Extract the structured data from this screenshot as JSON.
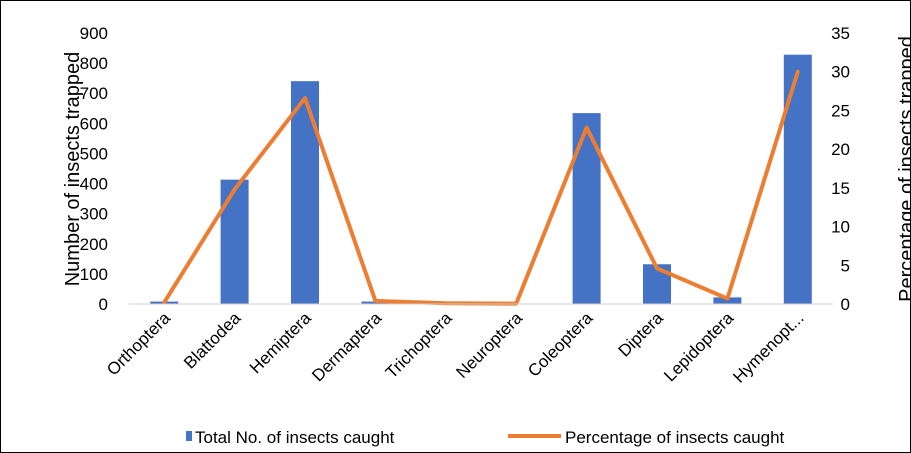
{
  "chart_data": {
    "type": "bar",
    "categories": [
      "Orthoptera",
      "Blattodea",
      "Hemiptera",
      "Dermaptera",
      "Trichoptera",
      "Neuroptera",
      "Coleoptera",
      "Diptera",
      "Lepidoptera",
      "Hymenopt..."
    ],
    "series": [
      {
        "name": "Total No. of insects caught",
        "type": "bar",
        "axis": "left",
        "color": "#4472C4",
        "values": [
          8,
          413,
          740,
          8,
          1,
          1,
          634,
          132,
          22,
          828
        ]
      },
      {
        "name": "Percentage of insects caught",
        "type": "line",
        "axis": "right",
        "color": "#ED7D31",
        "values": [
          0.2,
          14.8,
          26.6,
          0.4,
          0.1,
          0.05,
          22.8,
          4.6,
          0.7,
          30.0
        ]
      }
    ],
    "ylabel": "Number of insects trapped",
    "y2label": "Percentage of insects trapped",
    "ylim": [
      0,
      900
    ],
    "y2lim": [
      0,
      35
    ],
    "yticks": [
      "0",
      "100",
      "200",
      "300",
      "400",
      "500",
      "600",
      "700",
      "800",
      "900"
    ],
    "y2ticks": [
      "0",
      "5",
      "10",
      "15",
      "20",
      "25",
      "30",
      "35"
    ],
    "grid": false,
    "legend_position": "bottom"
  }
}
